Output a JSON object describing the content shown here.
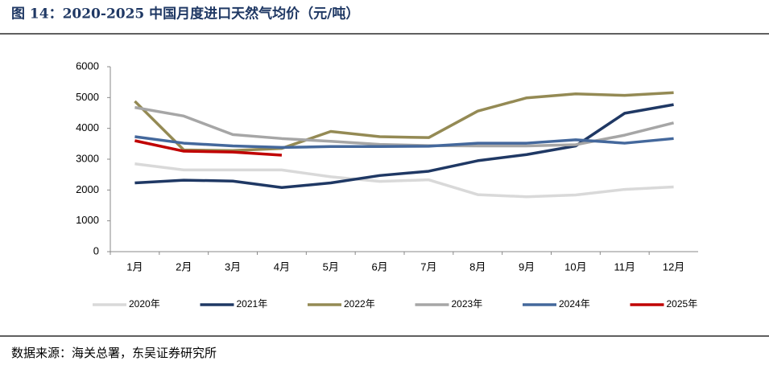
{
  "chart_data": {
    "type": "line",
    "title": "图 14：2020-2025 中国月度进口天然气均价（元/吨）",
    "source": "数据来源：海关总署，东吴证券研究所",
    "categories": [
      "1月",
      "2月",
      "3月",
      "4月",
      "5月",
      "6月",
      "7月",
      "8月",
      "9月",
      "10月",
      "11月",
      "12月"
    ],
    "series": [
      {
        "name": "2020年",
        "color": "#d9d9d9",
        "values": [
          2850,
          2650,
          2650,
          2650,
          2430,
          2280,
          2330,
          1850,
          1780,
          1840,
          2020,
          2100
        ]
      },
      {
        "name": "2021年",
        "color": "#1f3864",
        "values": [
          2230,
          2320,
          2290,
          2080,
          2230,
          2470,
          2610,
          2950,
          3150,
          3430,
          4490,
          4770
        ]
      },
      {
        "name": "2022年",
        "color": "#948a54",
        "values": [
          4880,
          3300,
          3280,
          3350,
          3900,
          3730,
          3700,
          4560,
          4990,
          5120,
          5070,
          5160
        ]
      },
      {
        "name": "2023年",
        "color": "#a6a6a6",
        "values": [
          4680,
          4400,
          3800,
          3670,
          3580,
          3480,
          3440,
          3430,
          3430,
          3470,
          3780,
          4180
        ]
      },
      {
        "name": "2024年",
        "color": "#44689c",
        "values": [
          3730,
          3520,
          3430,
          3380,
          3410,
          3410,
          3420,
          3520,
          3520,
          3630,
          3520,
          3670
        ]
      },
      {
        "name": "2025年",
        "color": "#c00000",
        "values": [
          3600,
          3260,
          3230,
          3130,
          null,
          null,
          null,
          null,
          null,
          null,
          null,
          null
        ]
      }
    ],
    "ylim": [
      0,
      6000
    ],
    "yticks": [
      0,
      1000,
      2000,
      3000,
      4000,
      5000,
      6000
    ]
  }
}
